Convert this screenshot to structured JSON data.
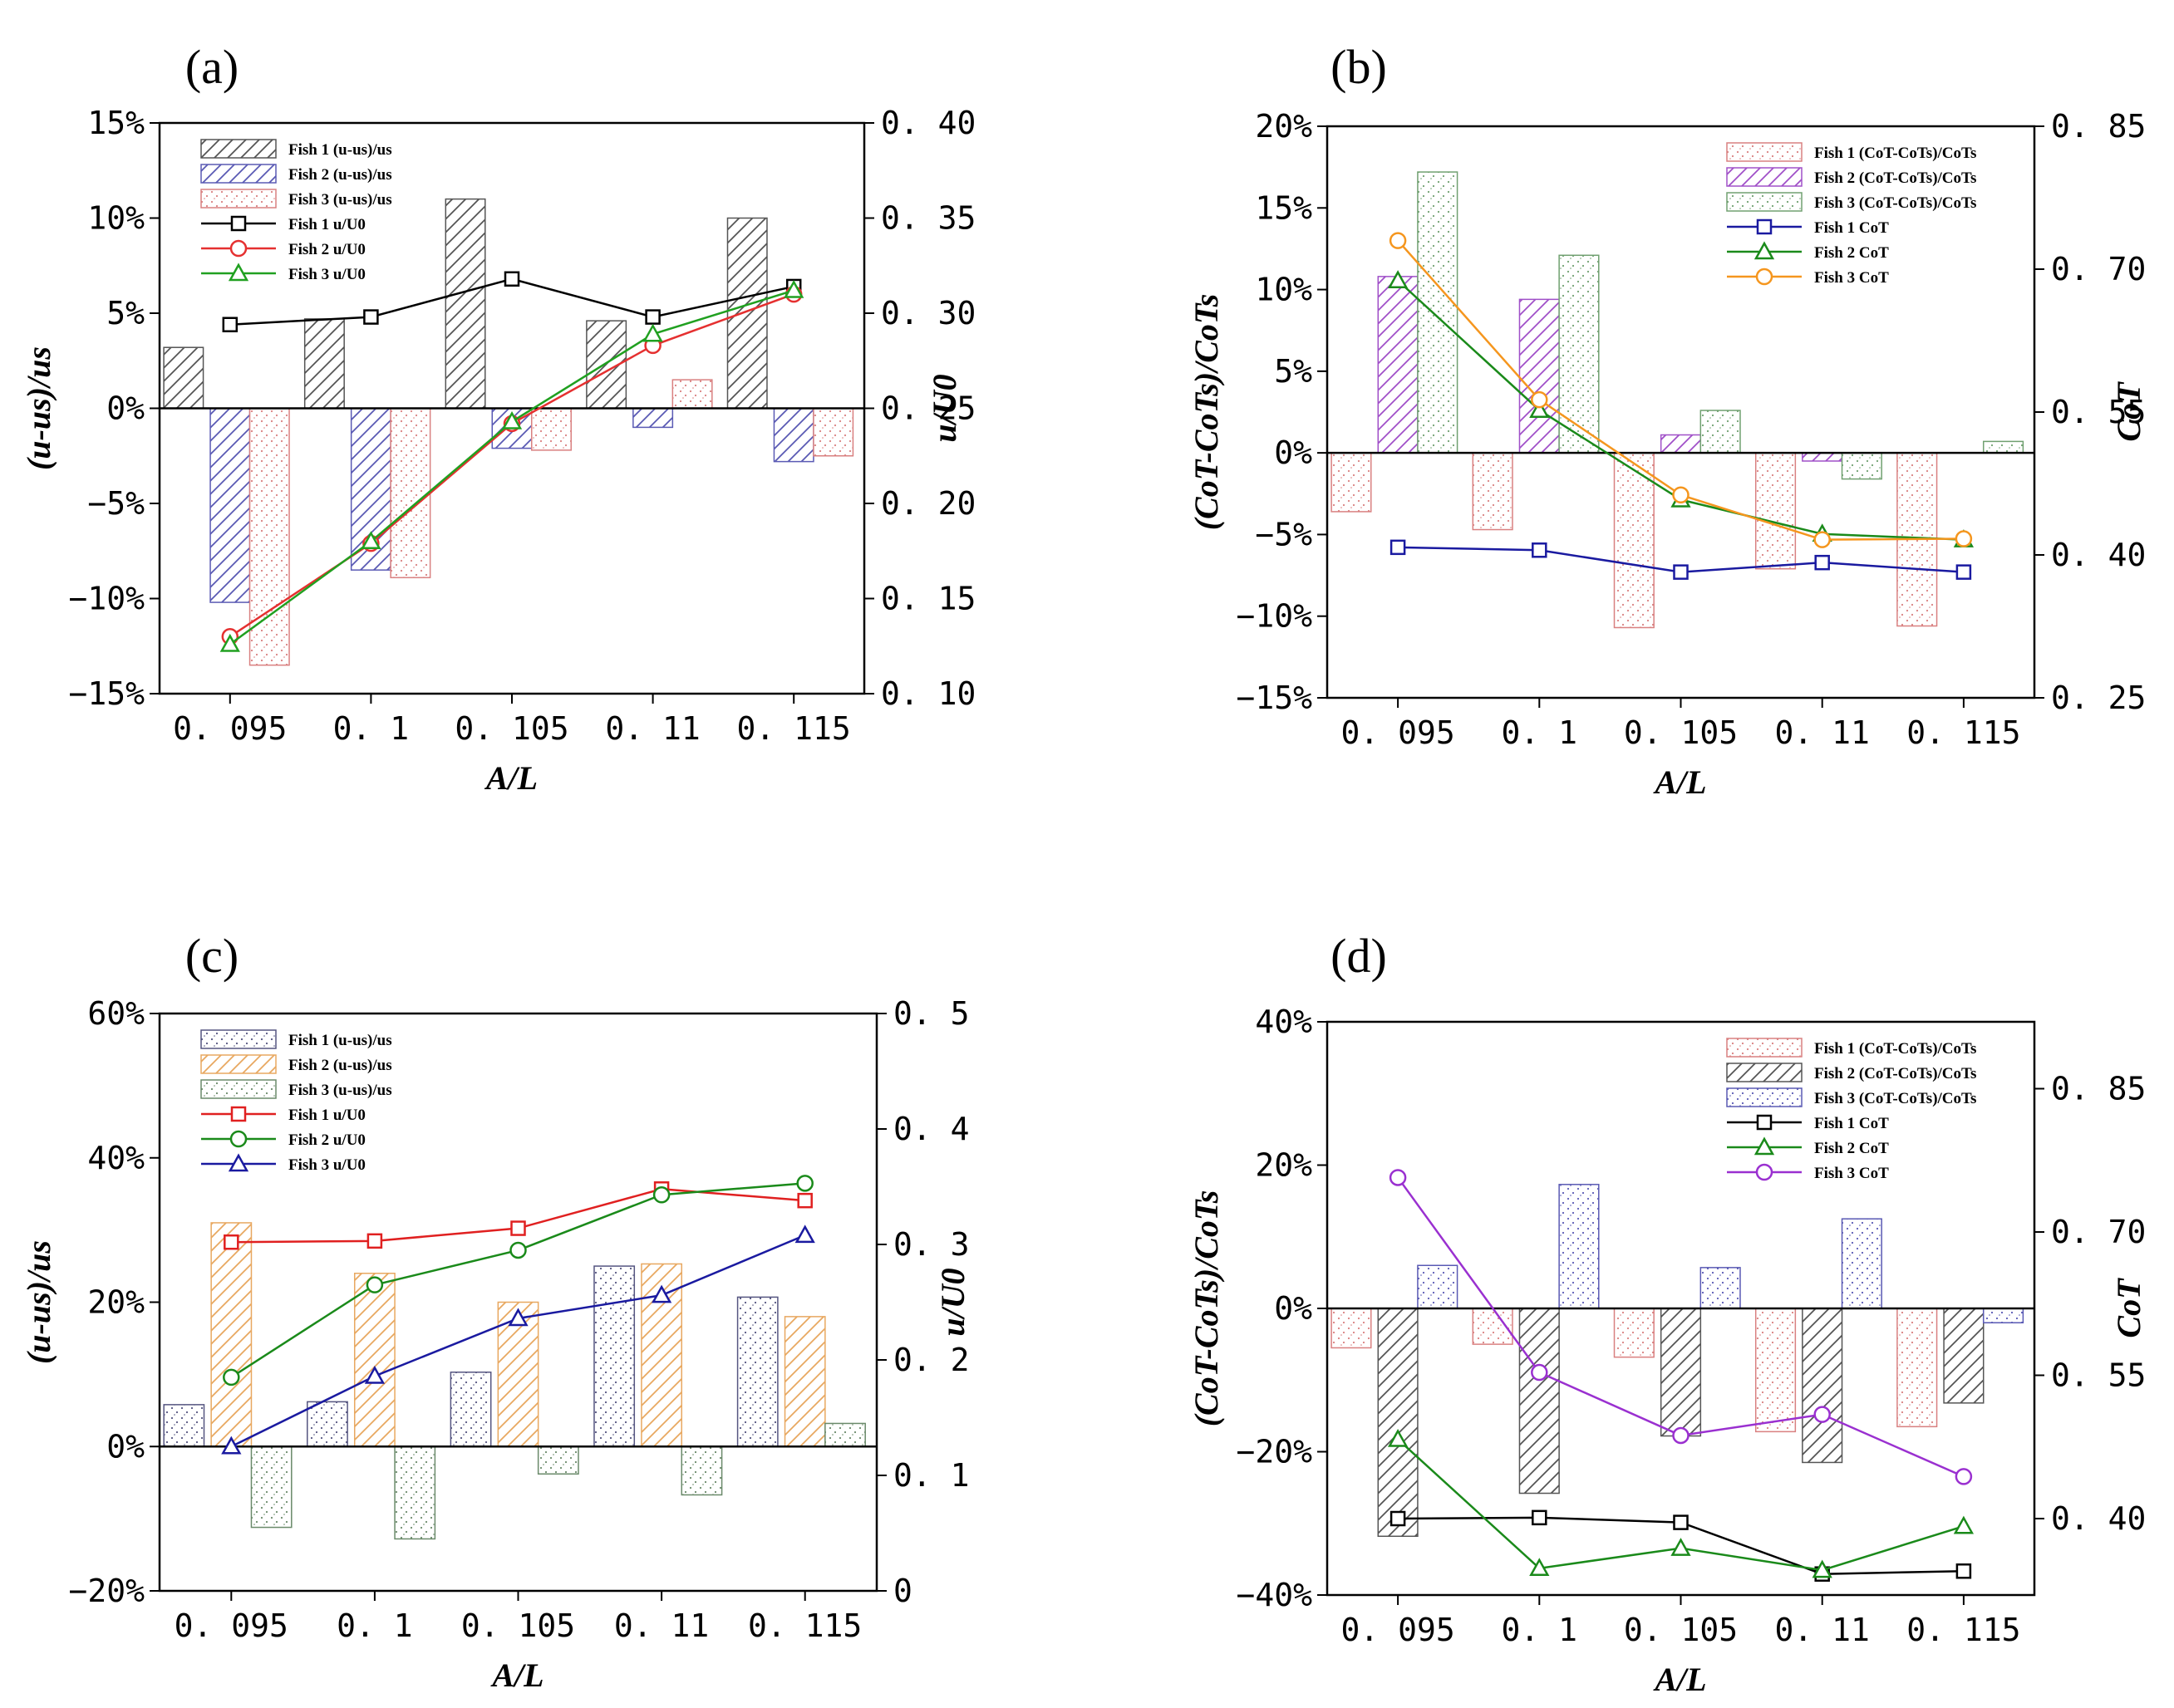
{
  "figure": {
    "panel_labels": [
      "(a)",
      "(b)",
      "(c)",
      "(d)"
    ]
  },
  "chart_data": [
    {
      "panel": "(a)",
      "type": "bar+line",
      "categories": [
        "0. 095",
        "0. 1",
        "0. 105",
        "0. 11",
        "0. 115"
      ],
      "xlabel": "A/L",
      "ylabel": "(u-us)/us",
      "y2label": "u/U0",
      "ylim": [
        -15,
        15
      ],
      "yticks": [
        -15,
        -10,
        -5,
        0,
        5,
        10,
        15
      ],
      "yticklabels": [
        "−15%",
        "−10%",
        "−5%",
        "0%",
        "5%",
        "10%",
        "15%"
      ],
      "y2lim": [
        0.1,
        0.4
      ],
      "y2ticks": [
        0.1,
        0.15,
        0.2,
        0.25,
        0.3,
        0.35,
        0.4
      ],
      "y2ticklabels": [
        "0. 10",
        "0. 15",
        "0. 20",
        "0. 25",
        "0. 30",
        "0. 35",
        "0. 40"
      ],
      "bar_series": [
        {
          "name": "Fish 1 (u-us)/us",
          "values": [
            3.2,
            4.7,
            11.0,
            4.6,
            10.0
          ],
          "color": "#555555",
          "pattern": "hatch"
        },
        {
          "name": "Fish 2 (u-us)/us",
          "values": [
            -10.2,
            -8.5,
            -2.1,
            -1.0,
            -2.8
          ],
          "color": "#5a5ab4",
          "pattern": "hatch"
        },
        {
          "name": "Fish 3 (u-us)/us",
          "values": [
            -13.5,
            -8.9,
            -2.2,
            1.5,
            -2.5
          ],
          "color": "#d98080",
          "pattern": "dots"
        }
      ],
      "line_series": [
        {
          "name": "Fish 1 u/U0",
          "values": [
            0.294,
            0.298,
            0.318,
            0.298,
            0.314
          ],
          "color": "#000000",
          "marker": "square"
        },
        {
          "name": "Fish 2 u/U0",
          "values": [
            0.13,
            0.179,
            0.242,
            0.283,
            0.31
          ],
          "color": "#e53030",
          "marker": "circle"
        },
        {
          "name": "Fish 3 u/U0",
          "values": [
            0.126,
            0.18,
            0.243,
            0.289,
            0.312
          ],
          "color": "#20a020",
          "marker": "triangle"
        }
      ]
    },
    {
      "panel": "(b)",
      "type": "bar+line",
      "categories": [
        "0. 095",
        "0. 1",
        "0. 105",
        "0. 11",
        "0. 115"
      ],
      "xlabel": "A/L",
      "ylabel": "(CoT-CoTs)/CoTs",
      "y2label": "CoT",
      "ylim": [
        -15,
        20
      ],
      "yticks": [
        -15,
        -10,
        -5,
        0,
        5,
        10,
        15,
        20
      ],
      "yticklabels": [
        "−15%",
        "−10%",
        "−5%",
        "0%",
        "5%",
        "10%",
        "15%",
        "20%"
      ],
      "y2lim": [
        0.25,
        0.85
      ],
      "y2ticks": [
        0.25,
        0.4,
        0.55,
        0.7,
        0.85
      ],
      "y2ticklabels": [
        "0. 25",
        "0. 40",
        "0. 55",
        "0. 70",
        "0. 85"
      ],
      "bar_series": [
        {
          "name": "Fish 1 (CoT-CoTs)/CoTs",
          "values": [
            -3.6,
            -4.7,
            -10.7,
            -7.1,
            -10.6
          ],
          "color": "#d98080",
          "pattern": "dots"
        },
        {
          "name": "Fish 2 (CoT-CoTs)/CoTs",
          "values": [
            10.8,
            9.4,
            1.1,
            -0.5,
            0.0
          ],
          "color": "#a050c8",
          "pattern": "hatch"
        },
        {
          "name": "Fish 3 (CoT-CoTs)/CoTs",
          "values": [
            17.2,
            12.1,
            2.6,
            -1.6,
            0.7
          ],
          "color": "#70a070",
          "pattern": "dots"
        }
      ],
      "line_series": [
        {
          "name": "Fish 1 CoT",
          "values": [
            0.408,
            0.405,
            0.382,
            0.392,
            0.382
          ],
          "color": "#1a1aa0",
          "marker": "square"
        },
        {
          "name": "Fish 2 CoT",
          "values": [
            0.688,
            0.552,
            0.458,
            0.422,
            0.416
          ],
          "color": "#1a8a1a",
          "marker": "triangle"
        },
        {
          "name": "Fish 3 CoT",
          "values": [
            0.73,
            0.563,
            0.463,
            0.416,
            0.417
          ],
          "color": "#f5961e",
          "marker": "circle"
        }
      ]
    },
    {
      "panel": "(c)",
      "type": "bar+line",
      "categories": [
        "0. 095",
        "0. 1",
        "0. 105",
        "0. 11",
        "0. 115"
      ],
      "xlabel": "A/L",
      "ylabel": "(u-us)/us",
      "y2label": "u/U0",
      "ylim": [
        -20,
        60
      ],
      "yticks": [
        -20,
        0,
        20,
        40,
        60
      ],
      "yticklabels": [
        "−20%",
        "0%",
        "20%",
        "40%",
        "60%"
      ],
      "y2lim": [
        0,
        0.5
      ],
      "y2ticks": [
        0,
        0.1,
        0.2,
        0.3,
        0.4,
        0.5
      ],
      "y2ticklabels": [
        "0",
        "0. 1",
        "0. 2",
        "0. 3",
        "0. 4",
        "0. 5"
      ],
      "bar_series": [
        {
          "name": "Fish 1 (u-us)/us",
          "values": [
            5.8,
            6.2,
            10.3,
            25.0,
            20.7
          ],
          "color": "#555580",
          "pattern": "dots"
        },
        {
          "name": "Fish 2 (u-us)/us",
          "values": [
            31.0,
            24.0,
            20.0,
            25.3,
            18.0
          ],
          "color": "#e8a860",
          "pattern": "hatch"
        },
        {
          "name": "Fish 3 (u-us)/us",
          "values": [
            -11.2,
            -12.8,
            -3.8,
            -6.7,
            3.2
          ],
          "color": "#6a8a6a",
          "pattern": "dots"
        }
      ],
      "line_series": [
        {
          "name": "Fish 1 u/U0",
          "values": [
            0.302,
            0.303,
            0.314,
            0.348,
            0.338
          ],
          "color": "#e02020",
          "marker": "square"
        },
        {
          "name": "Fish 2 u/U0",
          "values": [
            0.185,
            0.265,
            0.295,
            0.343,
            0.353
          ],
          "color": "#1a8a1a",
          "marker": "circle"
        },
        {
          "name": "Fish 3 u/U0",
          "values": [
            0.125,
            0.186,
            0.236,
            0.256,
            0.308
          ],
          "color": "#1a1aa0",
          "marker": "triangle"
        }
      ]
    },
    {
      "panel": "(d)",
      "type": "bar+line",
      "categories": [
        "0. 095",
        "0. 1",
        "0. 105",
        "0. 11",
        "0. 115"
      ],
      "xlabel": "A/L",
      "ylabel": "(CoT-CoTs)/CoTs",
      "y2label": "CoT",
      "ylim": [
        -40,
        40
      ],
      "yticks": [
        -40,
        -20,
        0,
        20,
        40
      ],
      "yticklabels": [
        "−40%",
        "−20%",
        "0%",
        "20%",
        "40%"
      ],
      "y2lim": [
        0.32,
        0.92
      ],
      "y2ticks": [
        0.4,
        0.55,
        0.7,
        0.85
      ],
      "y2ticklabels": [
        "0. 40",
        "0. 55",
        "0. 70",
        "0. 85"
      ],
      "bar_series": [
        {
          "name": "Fish 1 (CoT-CoTs)/CoTs",
          "values": [
            -5.5,
            -5.0,
            -6.8,
            -17.2,
            -16.5
          ],
          "color": "#d98080",
          "pattern": "dots"
        },
        {
          "name": "Fish 2 (CoT-CoTs)/CoTs",
          "values": [
            -31.8,
            -25.8,
            -17.8,
            -21.5,
            -13.2
          ],
          "color": "#555555",
          "pattern": "hatch"
        },
        {
          "name": "Fish 3 (CoT-CoTs)/CoTs",
          "values": [
            6.0,
            17.3,
            5.7,
            12.5,
            -2.0
          ],
          "color": "#5a5ab4",
          "pattern": "dots"
        }
      ],
      "line_series": [
        {
          "name": "Fish 1 CoT",
          "values": [
            0.4,
            0.401,
            0.396,
            0.342,
            0.345
          ],
          "color": "#000000",
          "marker": "square"
        },
        {
          "name": "Fish 2 CoT",
          "values": [
            0.483,
            0.348,
            0.369,
            0.346,
            0.392
          ],
          "color": "#1a8a1a",
          "marker": "triangle"
        },
        {
          "name": "Fish 3 CoT",
          "values": [
            0.757,
            0.553,
            0.487,
            0.509,
            0.444
          ],
          "color": "#9a30d0",
          "marker": "circle"
        }
      ]
    }
  ]
}
